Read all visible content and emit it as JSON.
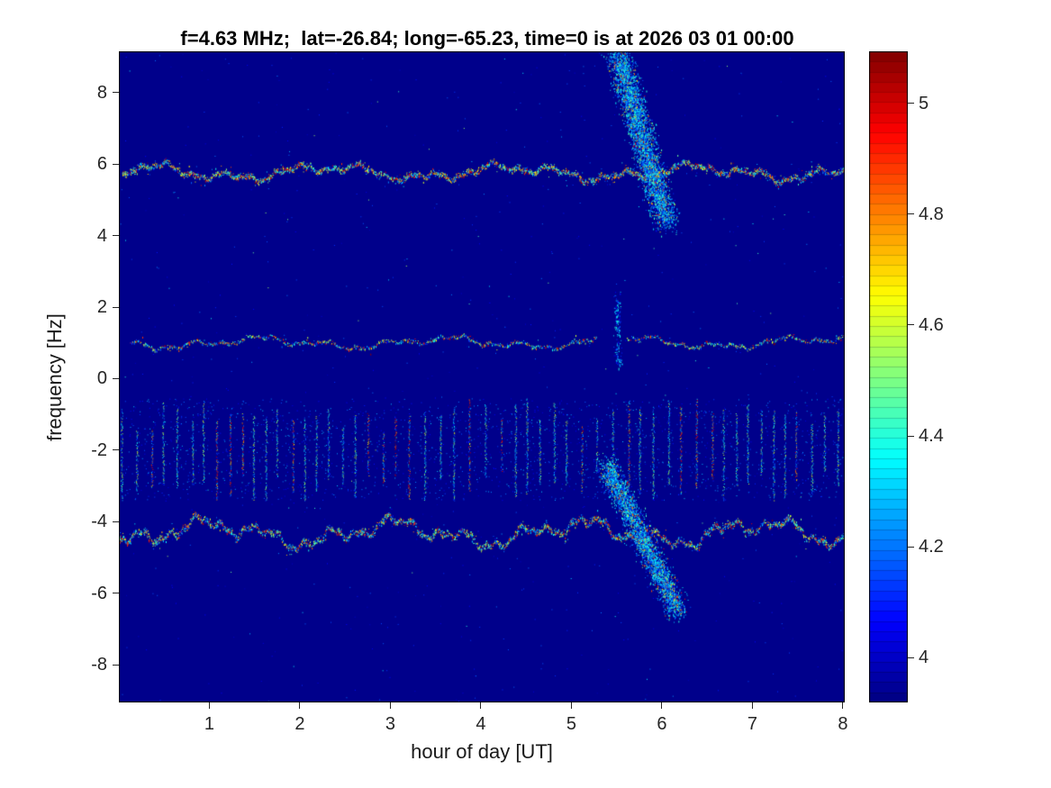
{
  "chart_data": {
    "type": "heatmap",
    "title": "f=4.63 MHz;  lat=-26.84; long=-65.23, time=0 is at 2026 03 01 00:00",
    "xlabel": "hour of day [UT]",
    "ylabel": "frequency [Hz]",
    "xlim": [
      0,
      8.02
    ],
    "ylim": [
      -9.05,
      9.15
    ],
    "xticks": [
      1,
      2,
      3,
      4,
      5,
      6,
      7,
      8
    ],
    "yticks": [
      8,
      6,
      4,
      2,
      0,
      -2,
      -4,
      -6,
      -8
    ],
    "colormap": "jet",
    "grid": false,
    "background_value": 3.932,
    "colorbar": {
      "clim": [
        3.919,
        5.094
      ],
      "ticks": [
        4,
        4.2,
        4.4,
        4.6,
        4.8,
        5
      ],
      "segments": 64,
      "position": "right"
    },
    "features": [
      {
        "kind": "noise",
        "name": "background-speckle",
        "count": 800,
        "seed": 29
      },
      {
        "kind": "striations",
        "name": "carrier-striation-band",
        "x_start": 0.03,
        "x_end": 8.0,
        "y_top": -0.55,
        "y_bottom": -3.4,
        "spacing": 0.15,
        "scatter": 1700,
        "seed": 5
      },
      {
        "kind": "speckle_line",
        "name": "upper-doppler-trace",
        "x_start": 0.04,
        "x_end": 8.02,
        "y_center": 5.78,
        "wave_amp": 0.3,
        "spread": 0.12,
        "hot": 0.36,
        "density": 3.2,
        "seed": 7
      },
      {
        "kind": "speckle_line",
        "name": "middle-doppler-trace",
        "x_start": 0.12,
        "x_end": 8.02,
        "y_center": 1.02,
        "wave_amp": 0.22,
        "spread": 0.07,
        "hot": 0.3,
        "density": 1.2,
        "seed": 3,
        "gaps": [
          [
            5.28,
            5.6
          ]
        ]
      },
      {
        "kind": "speckle_line",
        "name": "lower-doppler-trace",
        "x_start": 0.0,
        "x_end": 8.02,
        "y_center": -4.3,
        "wave_amp": 0.5,
        "spread": 0.14,
        "hot": 0.34,
        "density": 3.0,
        "seed": 11
      },
      {
        "kind": "streak",
        "name": "upper-diagonal-streak",
        "x0": 5.5,
        "y0": 9.15,
        "x1": 6.05,
        "y1": 4.35,
        "x_spread": 0.2,
        "y_spread": 0.55,
        "count": 3800,
        "seed": 17
      },
      {
        "kind": "streak",
        "name": "lower-diagonal-streak",
        "x0": 5.38,
        "y0": -2.4,
        "x1": 6.18,
        "y1": -6.5,
        "x_spread": 0.17,
        "y_spread": 0.5,
        "count": 3000,
        "seed": 23
      },
      {
        "kind": "streak",
        "name": "faint-column",
        "x0": 5.5,
        "y0": 2.4,
        "x1": 5.52,
        "y1": 0.3,
        "x_spread": 0.06,
        "y_spread": 0.25,
        "count": 150,
        "dim": true,
        "seed": 31
      }
    ]
  }
}
